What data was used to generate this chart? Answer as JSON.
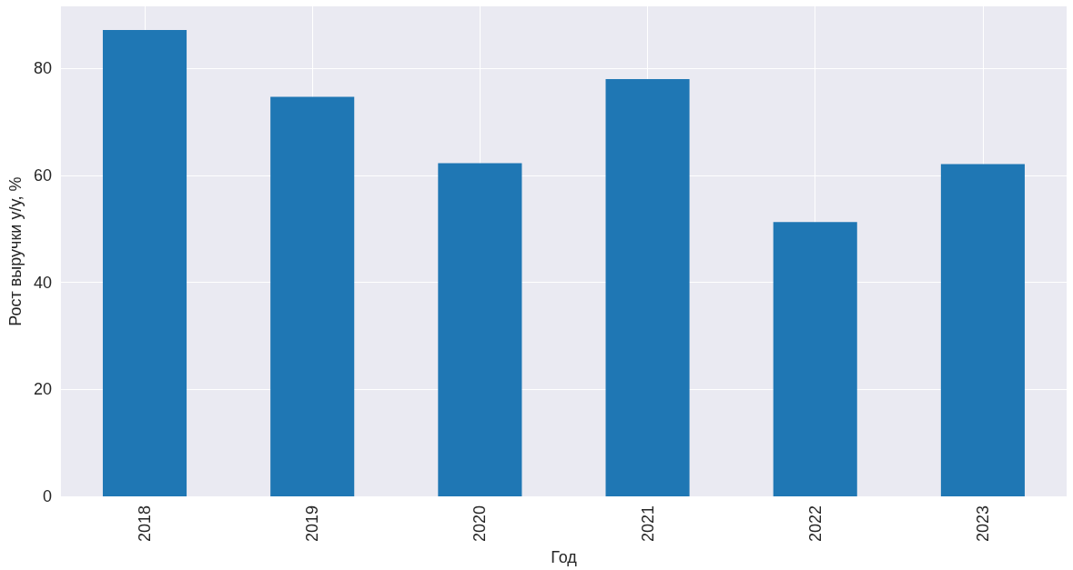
{
  "chart_data": {
    "type": "bar",
    "xlabel": "Год",
    "ylabel": "Рост выручки у/у, %",
    "categories": [
      "2018",
      "2019",
      "2020",
      "2021",
      "2022",
      "2023"
    ],
    "values": [
      87.2,
      74.7,
      62.3,
      78.0,
      51.3,
      62.1
    ],
    "color": "#1f77b4",
    "ylim": [
      0,
      91.6
    ],
    "yticks": [
      0,
      20,
      40,
      60,
      80
    ],
    "grid": true
  }
}
